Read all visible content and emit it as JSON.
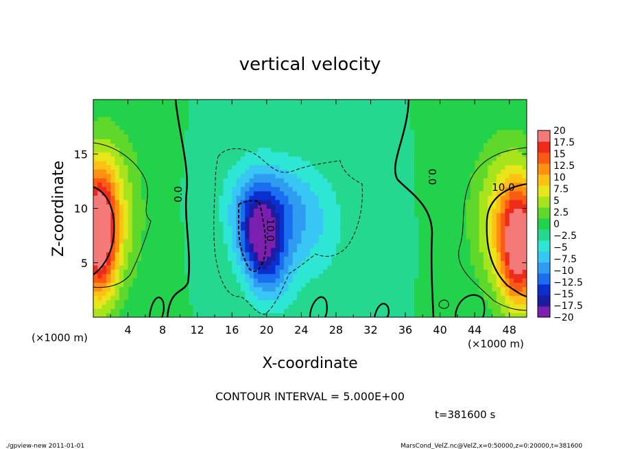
{
  "chart_data": {
    "type": "heatmap",
    "title": "vertical velocity",
    "xlabel": "X-coordinate",
    "ylabel": "Z-coordinate",
    "x_unit_label": "(×1000 m)",
    "z_unit_label": "(×1000 m)",
    "xlim": [
      0,
      50
    ],
    "ylim": [
      0,
      20
    ],
    "x_ticks": [
      4,
      8,
      12,
      16,
      20,
      24,
      28,
      32,
      36,
      40,
      44,
      48
    ],
    "y_ticks": [
      5,
      10,
      15
    ],
    "colorbar": {
      "levels": [
        -20,
        -17.5,
        -15,
        -12.5,
        -10,
        -7.5,
        -5,
        -2.5,
        0,
        2.5,
        5,
        7.5,
        10,
        12.5,
        15,
        17.5,
        20
      ],
      "labels": [
        "20",
        "17.5",
        "15",
        "12.5",
        "10",
        "7.5",
        "5",
        "2.5",
        "0",
        "−2.5",
        "−5",
        "−7.5",
        "−10",
        "−12.5",
        "−15",
        "−17.5",
        "−20"
      ],
      "colors": [
        "#7b1fb0",
        "#1c1ca0",
        "#0a2fd0",
        "#1a6ef0",
        "#2f9cf2",
        "#38c6f4",
        "#2ee6d4",
        "#24d890",
        "#22d24a",
        "#5ed82a",
        "#a8e41c",
        "#e6e61a",
        "#ffc214",
        "#ff9010",
        "#fb5a12",
        "#ee2a1a",
        "#f47a7a"
      ]
    },
    "contour_labels": [
      {
        "text": "0.0",
        "x": 10.2,
        "z": 11.3,
        "rotate": -90
      },
      {
        "text": "10.0",
        "x": 20.0,
        "z": 8.0,
        "rotate": 90
      },
      {
        "text": "0.0",
        "x": 38.7,
        "z": 12.9,
        "rotate": 90
      },
      {
        "text": "10.0",
        "x": 47.3,
        "z": 11.6,
        "rotate": 0
      }
    ],
    "field_features": [
      {
        "x": 0.6,
        "z": 7.5,
        "value": 20,
        "sx": 1.4,
        "sz": 4.2
      },
      {
        "x": 1.8,
        "z": 9.5,
        "value": 9,
        "sx": 2.5,
        "sz": 5
      },
      {
        "x": 49.2,
        "z": 6.5,
        "value": 20,
        "sx": 1.5,
        "sz": 4.0
      },
      {
        "x": 47.3,
        "z": 9.0,
        "value": 9,
        "sx": 2.6,
        "sz": 5
      },
      {
        "x": 19.2,
        "z": 7.3,
        "value": -13,
        "sx": 1.7,
        "sz": 2.6
      },
      {
        "x": 18.5,
        "z": 10.5,
        "value": -6,
        "sx": 2.5,
        "sz": 3
      },
      {
        "x": 21.8,
        "z": 10.0,
        "value": -5,
        "sx": 3.2,
        "sz": 3
      },
      {
        "x": 24.5,
        "z": 8.0,
        "value": -4,
        "sx": 3.5,
        "sz": 4
      },
      {
        "x": 20.5,
        "z": 4.0,
        "value": -6,
        "sx": 1.8,
        "sz": 2.5
      }
    ]
  },
  "annotations": {
    "contour_interval": "CONTOUR INTERVAL = 5.000E+00",
    "time": "t=381600 s",
    "footer_left": "./gpview-new   2011-01-01",
    "footer_right": "MarsCond_VelZ.nc@VelZ,x=0:50000,z=0:20000,t=381600"
  }
}
